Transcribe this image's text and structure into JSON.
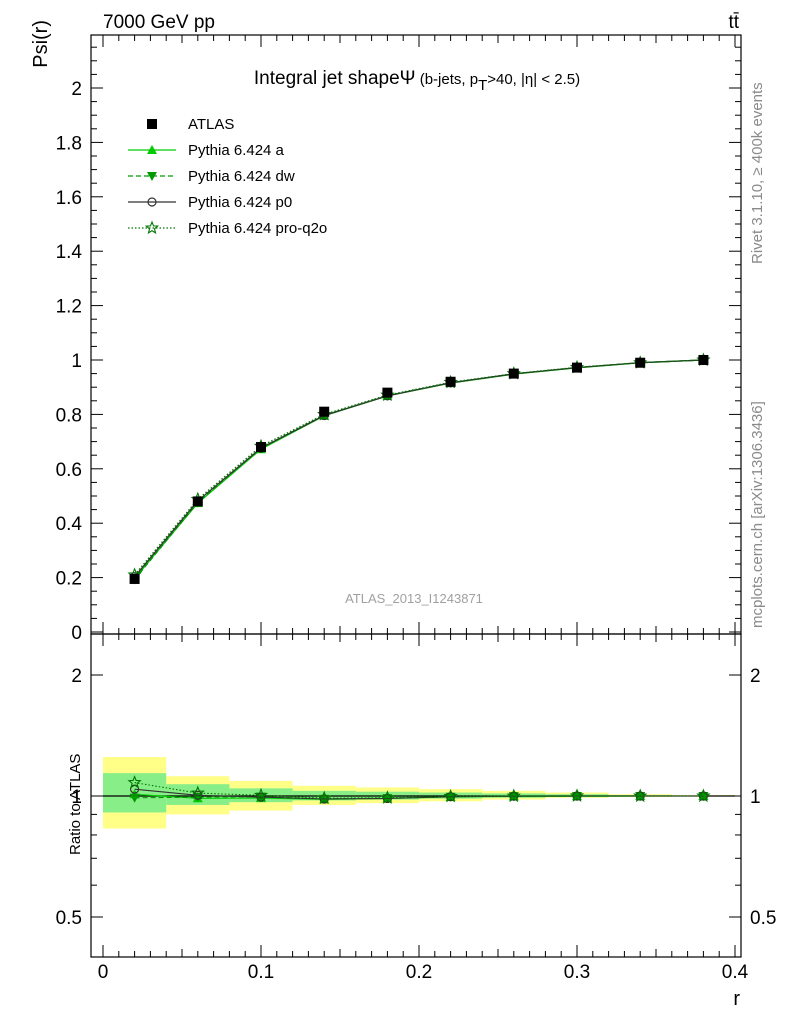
{
  "header": {
    "left": "7000 GeV pp",
    "right": "tt̄"
  },
  "side_text": {
    "rivet": "Rivet 3.1.10, ≥ 400k events",
    "mcplots": "mcplots.cern.ch [arXiv:1306.3436]"
  },
  "watermark": "ATLAS_2013_I1243871",
  "chart_data": [
    {
      "type": "line",
      "title": "Integral jet shape",
      "title_symbol": "Ψ",
      "subtitle_pre": " (b-jets, p",
      "subtitle_sub": "T",
      "subtitle_post": ">40, |η| < 2.5)",
      "ylabel": "Psi(r)",
      "xlabel": "r",
      "xlim": [
        0,
        0.4
      ],
      "ylim": [
        0,
        2.2
      ],
      "x": [
        0.02,
        0.06,
        0.1,
        0.14,
        0.18,
        0.22,
        0.26,
        0.3,
        0.34,
        0.38
      ],
      "yticks": [
        "0",
        "0.2",
        "0.4",
        "0.6",
        "0.8",
        "1",
        "1.2",
        "1.4",
        "1.6",
        "1.8",
        "2"
      ],
      "xticks": [
        "0",
        "0.1",
        "0.2",
        "0.3",
        "0.4"
      ],
      "legend_position": "top-left",
      "series": [
        {
          "name": "ATLAS",
          "marker": "square",
          "style": "marker",
          "color": "#000000",
          "values": [
            0.195,
            0.48,
            0.68,
            0.81,
            0.88,
            0.92,
            0.95,
            0.972,
            0.99,
            1.0
          ]
        },
        {
          "name": "Pythia 6.424 a",
          "marker": "triangle-up",
          "style": "solid",
          "color": "#00cc00",
          "values": [
            0.197,
            0.474,
            0.672,
            0.795,
            0.868,
            0.915,
            0.948,
            0.971,
            0.99,
            1.0
          ]
        },
        {
          "name": "Pythia 6.424 dw",
          "marker": "triangle-down",
          "style": "dashed",
          "color": "#009900",
          "values": [
            0.193,
            0.477,
            0.677,
            0.797,
            0.869,
            0.916,
            0.949,
            0.972,
            0.99,
            1.0
          ]
        },
        {
          "name": "Pythia 6.424 p0",
          "marker": "circle-open",
          "style": "solid",
          "color": "#333333",
          "values": [
            0.203,
            0.482,
            0.676,
            0.796,
            0.868,
            0.916,
            0.949,
            0.972,
            0.99,
            1.0
          ]
        },
        {
          "name": "Pythia 6.424 pro-q2o",
          "marker": "star-open",
          "style": "dotted",
          "color": "#007700",
          "values": [
            0.21,
            0.488,
            0.683,
            0.8,
            0.871,
            0.918,
            0.95,
            0.973,
            0.99,
            1.0
          ]
        }
      ]
    },
    {
      "type": "line",
      "ylabel": "Ratio to ATLAS",
      "xlabel": "r",
      "xlim": [
        0,
        0.4
      ],
      "ylim": [
        0.5,
        2.2
      ],
      "yscale": "log",
      "yticks": [
        "0.5",
        "1",
        "2"
      ],
      "xticks": [
        "0",
        "0.1",
        "0.2",
        "0.3",
        "0.4"
      ],
      "x": [
        0.02,
        0.06,
        0.1,
        0.14,
        0.18,
        0.22,
        0.26,
        0.3,
        0.34,
        0.38
      ],
      "uncertainty_bands": {
        "x_edges": [
          0.0,
          0.04,
          0.08,
          0.12,
          0.16,
          0.2,
          0.24,
          0.28,
          0.32,
          0.36,
          0.4
        ],
        "outer_color": "#ffff88",
        "inner_color": "#88ee88",
        "outer": [
          [
            0.83,
            1.25
          ],
          [
            0.9,
            1.12
          ],
          [
            0.92,
            1.09
          ],
          [
            0.95,
            1.06
          ],
          [
            0.96,
            1.05
          ],
          [
            0.97,
            1.04
          ],
          [
            0.98,
            1.03
          ],
          [
            0.99,
            1.02
          ],
          [
            0.995,
            1.01
          ],
          [
            0.998,
            1.005
          ]
        ],
        "inner": [
          [
            0.91,
            1.14
          ],
          [
            0.95,
            1.07
          ],
          [
            0.965,
            1.045
          ],
          [
            0.975,
            1.03
          ],
          [
            0.98,
            1.025
          ],
          [
            0.985,
            1.02
          ],
          [
            0.99,
            1.015
          ],
          [
            0.994,
            1.01
          ],
          [
            0.997,
            1.005
          ],
          [
            0.999,
            1.002
          ]
        ]
      },
      "series": [
        {
          "name": "ATLAS",
          "style": "solid",
          "color": "#000000",
          "values": [
            1.0,
            1.0,
            1.0,
            1.0,
            1.0,
            1.0,
            1.0,
            1.0,
            1.0,
            1.0
          ]
        },
        {
          "name": "Pythia 6.424 a",
          "marker": "triangle-up",
          "style": "solid",
          "color": "#00cc00",
          "values": [
            1.01,
            0.987,
            0.988,
            0.981,
            0.986,
            0.995,
            0.998,
            0.999,
            1.0,
            1.0
          ]
        },
        {
          "name": "Pythia 6.424 dw",
          "marker": "triangle-down",
          "style": "dashed",
          "color": "#009900",
          "values": [
            0.99,
            0.994,
            0.996,
            0.984,
            0.988,
            0.996,
            0.999,
            1.0,
            1.0,
            1.0
          ]
        },
        {
          "name": "Pythia 6.424 p0",
          "marker": "circle-open",
          "style": "solid",
          "color": "#333333",
          "values": [
            1.04,
            1.004,
            0.994,
            0.983,
            0.986,
            0.996,
            0.999,
            1.0,
            1.0,
            1.0
          ]
        },
        {
          "name": "Pythia 6.424 pro-q2o",
          "marker": "star-open",
          "style": "dotted",
          "color": "#007700",
          "values": [
            1.08,
            1.017,
            1.004,
            0.988,
            0.99,
            0.998,
            1.0,
            1.001,
            1.0,
            1.0
          ]
        }
      ]
    }
  ]
}
